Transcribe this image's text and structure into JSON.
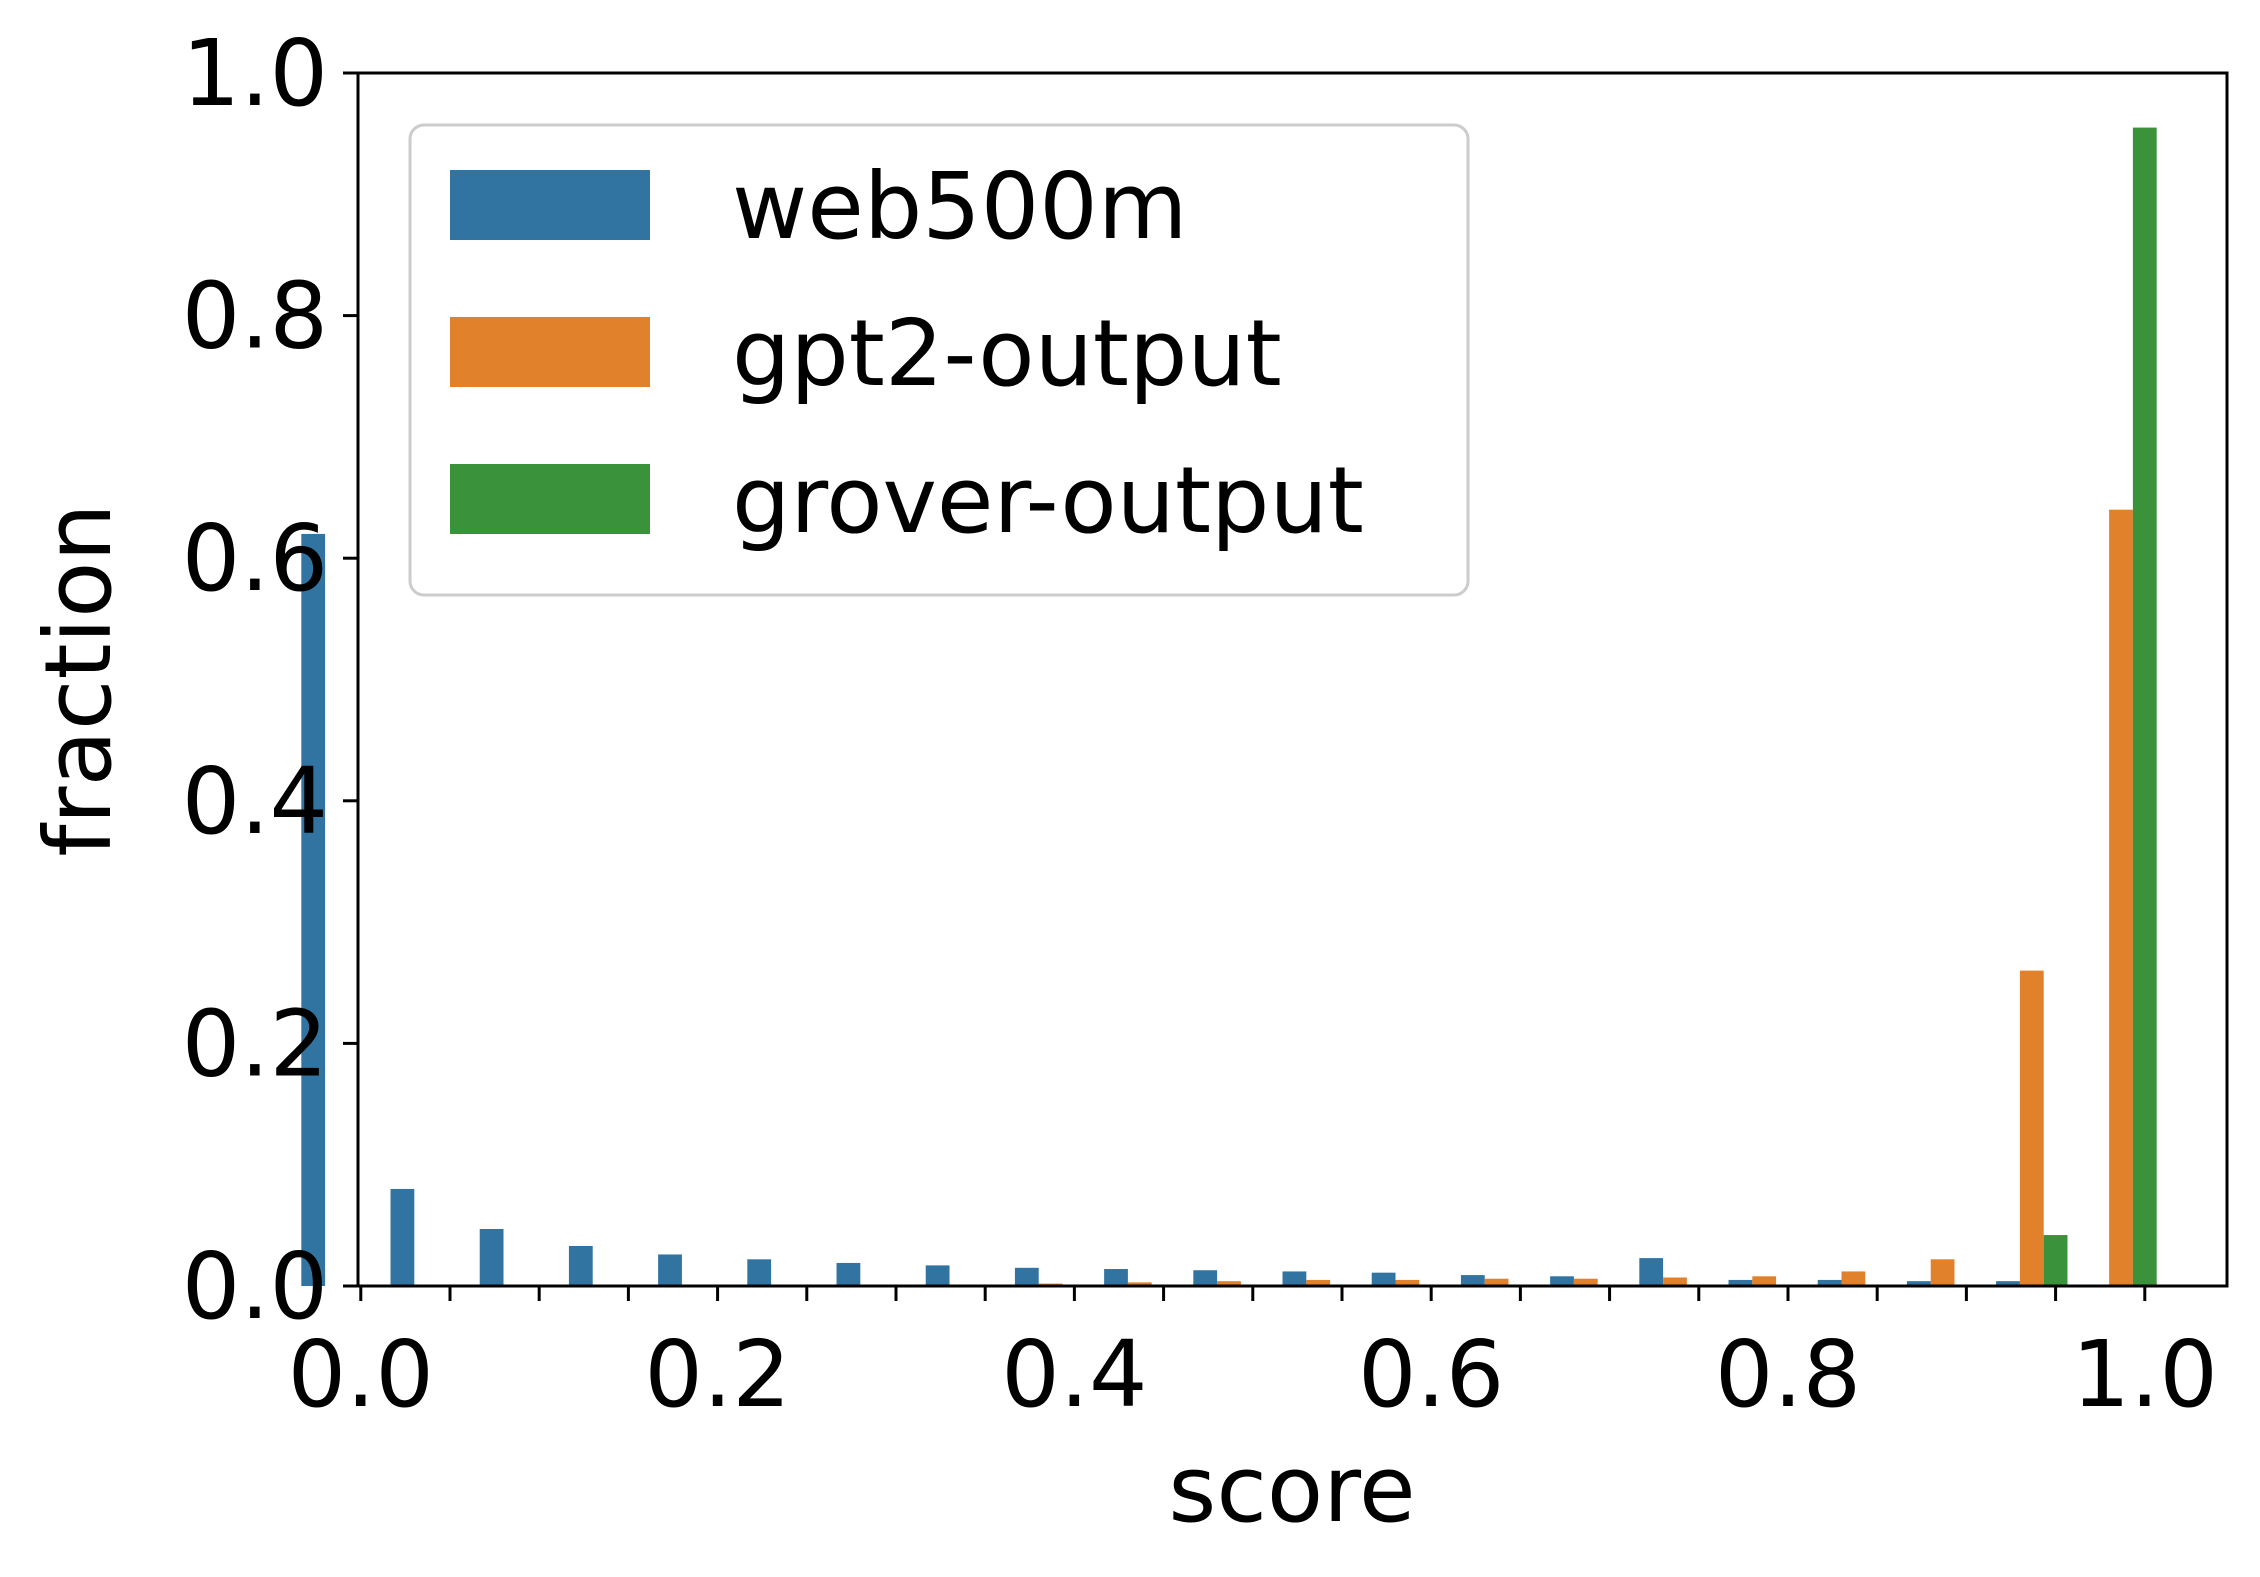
{
  "chart_data": {
    "type": "bar",
    "xlabel": "score",
    "ylabel": "fraction",
    "xlim": [
      0.0,
      1.05
    ],
    "ylim": [
      0.0,
      1.0
    ],
    "x_tick_labels": [
      "0.0",
      "0.2",
      "0.4",
      "0.6",
      "0.8",
      "1.0"
    ],
    "y_tick_labels": [
      "0.0",
      "0.2",
      "0.4",
      "0.6",
      "0.8",
      "1.0"
    ],
    "grid": false,
    "legend_position": "top-left",
    "categories": [
      0.0,
      0.05,
      0.1,
      0.15,
      0.2,
      0.25,
      0.3,
      0.35,
      0.4,
      0.45,
      0.5,
      0.55,
      0.6,
      0.65,
      0.7,
      0.75,
      0.8,
      0.85,
      0.9,
      0.95,
      1.0
    ],
    "series": [
      {
        "name": "web500m",
        "color": "#3274a1",
        "values": [
          0.62,
          0.08,
          0.047,
          0.033,
          0.026,
          0.022,
          0.019,
          0.017,
          0.015,
          0.014,
          0.013,
          0.012,
          0.011,
          0.009,
          0.008,
          0.023,
          0.005,
          0.005,
          0.004,
          0.004,
          0.0
        ]
      },
      {
        "name": "gpt2-output",
        "color": "#e1812c",
        "values": [
          0.0,
          0.0,
          0.0,
          0.0,
          0.0,
          0.0,
          0.0,
          0.001,
          0.002,
          0.003,
          0.004,
          0.005,
          0.005,
          0.006,
          0.006,
          0.007,
          0.008,
          0.012,
          0.022,
          0.26,
          0.64
        ]
      },
      {
        "name": "grover-output",
        "color": "#3a923a",
        "values": [
          0.0,
          0.0,
          0.0,
          0.0,
          0.0,
          0.0,
          0.0,
          0.0,
          0.0,
          0.0,
          0.0,
          0.0,
          0.0,
          0.0,
          0.0,
          0.0,
          0.0,
          0.0,
          0.0,
          0.042,
          0.955
        ]
      }
    ]
  }
}
